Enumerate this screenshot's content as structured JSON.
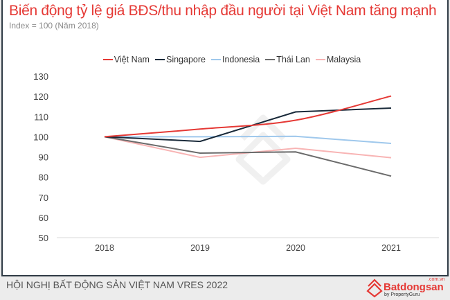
{
  "header": {
    "title": "Biến động tỷ lệ giá BĐS/thu nhập đầu người tại Việt Nam tăng mạnh",
    "subtitle": "Index = 100 (Năm 2018)"
  },
  "footer": {
    "text": "HỘI NGHỊ BẤT ĐỘNG SẢN VIỆT NAM VRES 2022",
    "logo_brand": "Batdongsan",
    "logo_domain": ".com.vn",
    "logo_by": "by PropertyGuru"
  },
  "chart_data": {
    "type": "line",
    "title": "Biến động tỷ lệ giá BĐS/thu nhập đầu người tại Việt Nam tăng mạnh",
    "subtitle": "Index = 100 (Năm 2018)",
    "categories": [
      "2018",
      "2019",
      "2020",
      "2021"
    ],
    "ylim": [
      50,
      130
    ],
    "yticks": [
      "50",
      "60",
      "70",
      "80",
      "90",
      "100",
      "110",
      "120",
      "130"
    ],
    "grid": false,
    "legend": "top",
    "series": [
      {
        "name": "Việt Nam",
        "color": "#e53935",
        "smooth": true,
        "values": [
          100,
          103.8,
          108.2,
          120.2
        ]
      },
      {
        "name": "Singapore",
        "color": "#1a2a3a",
        "values": [
          100,
          97.7,
          112.3,
          114.2
        ]
      },
      {
        "name": "Indonesia",
        "color": "#9fc8ec",
        "values": [
          100,
          100,
          100.2,
          96.7
        ]
      },
      {
        "name": "Thái Lan",
        "color": "#6b6b6b",
        "values": [
          100,
          91.9,
          92.5,
          80.5
        ]
      },
      {
        "name": "Malaysia",
        "color": "#f8b4b4",
        "values": [
          100,
          89.8,
          94.3,
          89.6
        ]
      }
    ]
  }
}
